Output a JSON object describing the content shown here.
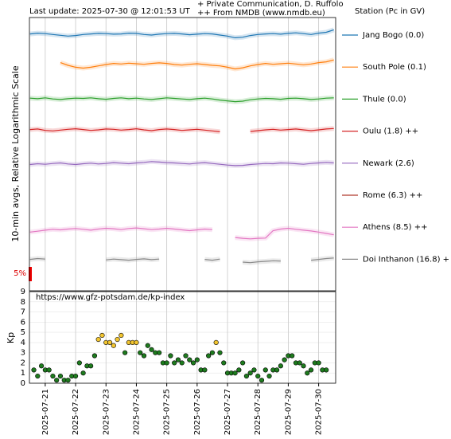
{
  "chart_data": [
    {
      "type": "line",
      "title": "Last update: 2025-07-30 @ 12:01:53 UT",
      "notes": [
        "+ Private Communication, D. Ruffolo",
        "++ From NMDB (www.nmdb.eu)"
      ],
      "legend_title": "Station (Pc in GV)",
      "y_label": "10-min avgs, Relative Logarithmic Scale",
      "scale_label": "5%",
      "xlim": [
        20.48,
        30.56
      ],
      "ylim": [
        0,
        100
      ],
      "xticks": [
        21,
        22,
        23,
        24,
        25,
        26,
        27,
        28,
        29,
        30
      ],
      "x": [
        20.5,
        20.75,
        21,
        21.25,
        21.5,
        21.75,
        22,
        22.25,
        22.5,
        22.75,
        23,
        23.25,
        23.5,
        23.75,
        24,
        24.25,
        24.5,
        24.75,
        25,
        25.25,
        25.5,
        25.75,
        26,
        26.25,
        26.5,
        26.75,
        27,
        27.25,
        27.5,
        27.75,
        28,
        28.25,
        28.5,
        28.75,
        29,
        29.25,
        29.5,
        29.75,
        30,
        30.25,
        30.5
      ],
      "series": [
        {
          "name": "Jang Bogo (0.0)",
          "color": "#1f77b4",
          "values": [
            94,
            94.3,
            94.1,
            93.8,
            93.5,
            93.2,
            93.4,
            93.8,
            94,
            94.2,
            94.1,
            93.9,
            94,
            94.3,
            94.2,
            93.8,
            93.6,
            93.9,
            94.1,
            94.2,
            94,
            93.7,
            93.9,
            94.1,
            94,
            93.6,
            93.2,
            92.6,
            92.8,
            93.4,
            93.8,
            94,
            94.1,
            93.9,
            94.2,
            94.4,
            94.1,
            93.8,
            94.3,
            94.6,
            95.5
          ]
        },
        {
          "name": "South Pole (0.1)",
          "color": "#ff7f0e",
          "values": [
            null,
            null,
            null,
            null,
            83.5,
            82.5,
            81.8,
            81.5,
            81.8,
            82.3,
            82.8,
            83.2,
            83,
            83.3,
            83.1,
            82.9,
            83.2,
            83.4,
            83.2,
            82.8,
            82.6,
            82.9,
            83.1,
            82.8,
            82.5,
            82.3,
            81.8,
            81.2,
            81.6,
            82.3,
            82.8,
            83.2,
            82.9,
            83.1,
            83.3,
            83,
            82.7,
            83,
            83.5,
            83.8,
            84.5
          ]
        },
        {
          "name": "Thule (0.0)",
          "color": "#2ca02c",
          "values": [
            70.5,
            70.3,
            70.6,
            70.2,
            70,
            70.3,
            70.5,
            70.4,
            70.6,
            70.3,
            70.1,
            70.4,
            70.6,
            70.3,
            70.5,
            70.2,
            70,
            70.3,
            70.6,
            70.4,
            70.2,
            70,
            70.3,
            70.5,
            70.2,
            69.8,
            69.5,
            69.2,
            69.4,
            69.9,
            70.2,
            70.4,
            70.3,
            70.1,
            70.4,
            70.5,
            70.3,
            70,
            70.2,
            70.5,
            70.6
          ]
        },
        {
          "name": "Oulu (1.8) ++",
          "color": "#d62728",
          "values": [
            59,
            59.2,
            58.7,
            58.5,
            58.8,
            59.1,
            59.3,
            59,
            58.7,
            58.9,
            59.2,
            59.1,
            58.8,
            59,
            59.3,
            58.9,
            58.6,
            59,
            59.2,
            59,
            58.7,
            58.9,
            59.1,
            58.8,
            58.5,
            58.2,
            null,
            null,
            null,
            58.3,
            58.6,
            58.9,
            59.1,
            58.8,
            59,
            59.2,
            58.9,
            58.6,
            58.9,
            59.2,
            59.4
          ]
        },
        {
          "name": "Newark (2.6)",
          "color": "#9467bd",
          "values": [
            46.2,
            46.5,
            46.3,
            46.6,
            46.8,
            46.4,
            46.2,
            46.5,
            46.7,
            46.4,
            46.6,
            46.9,
            46.7,
            46.5,
            46.8,
            47,
            47.3,
            47.1,
            46.9,
            46.8,
            46.6,
            46.4,
            46.7,
            46.9,
            46.6,
            46.3,
            46,
            45.8,
            45.9,
            46.2,
            46.4,
            46.6,
            46.5,
            46.8,
            46.7,
            46.5,
            46.3,
            46.6,
            46.8,
            47,
            46.8
          ]
        },
        {
          "name": "Rome (6.3) ++",
          "color": "#b03a2e",
          "values": [
            null,
            null,
            null,
            null,
            null,
            null,
            null,
            null,
            null,
            null,
            null,
            null,
            null,
            null,
            null,
            null,
            null,
            null,
            null,
            null,
            null,
            null,
            null,
            null,
            null,
            null,
            null,
            null,
            null,
            null,
            null,
            null,
            null,
            null,
            null,
            null,
            null,
            null,
            null,
            null,
            null
          ]
        },
        {
          "name": "Athens (8.5) ++",
          "color": "#e377c2",
          "values": [
            21.5,
            21.8,
            22.2,
            22.5,
            22.3,
            22.6,
            22.8,
            22.5,
            22.2,
            22.6,
            22.9,
            22.7,
            22.4,
            22.8,
            23,
            22.7,
            22.4,
            22.6,
            22.9,
            22.6,
            22.3,
            22,
            22.3,
            22.6,
            22.4,
            null,
            null,
            19.5,
            19.2,
            19,
            19.2,
            19.3,
            22,
            22.6,
            22.9,
            22.5,
            22.2,
            21.9,
            21.5,
            21,
            20.5
          ]
        },
        {
          "name": "Doi Inthanon (16.8) +",
          "color": "#8a8a8a",
          "values": [
            11.5,
            11.8,
            11.6,
            null,
            null,
            null,
            null,
            null,
            null,
            null,
            11.3,
            11.6,
            11.4,
            11.2,
            11.5,
            11.7,
            11.4,
            11.6,
            null,
            null,
            null,
            null,
            null,
            11.5,
            11.2,
            11.6,
            null,
            null,
            10.5,
            10.3,
            10.6,
            10.8,
            11,
            10.9,
            null,
            null,
            null,
            11.2,
            11.5,
            11.8,
            12
          ]
        }
      ]
    },
    {
      "type": "scatter",
      "annotation": "https://www.gfz-potsdam.de/kp-index",
      "y_label": "Kp",
      "xlim": [
        20.48,
        30.56
      ],
      "ylim": [
        0,
        9
      ],
      "yticks": [
        0,
        1,
        2,
        3,
        4,
        5,
        6,
        7,
        8,
        9
      ],
      "xticks": [
        {
          "value": 21,
          "label": "2025-07-21"
        },
        {
          "value": 22,
          "label": "2025-07-22"
        },
        {
          "value": 23,
          "label": "2025-07-23"
        },
        {
          "value": 24,
          "label": "2025-07-24"
        },
        {
          "value": 25,
          "label": "2025-07-25"
        },
        {
          "value": 26,
          "label": "2025-07-26"
        },
        {
          "value": 27,
          "label": "2025-07-27"
        },
        {
          "value": 28,
          "label": "2025-07-28"
        },
        {
          "value": 29,
          "label": "2025-07-29"
        },
        {
          "value": 30,
          "label": "2025-07-30"
        }
      ],
      "grid": true,
      "x": [
        20.625,
        20.75,
        20.875,
        21,
        21.125,
        21.25,
        21.375,
        21.5,
        21.625,
        21.75,
        21.875,
        22,
        22.125,
        22.25,
        22.375,
        22.5,
        22.625,
        22.75,
        22.875,
        23,
        23.125,
        23.25,
        23.375,
        23.5,
        23.625,
        23.75,
        23.875,
        24,
        24.125,
        24.25,
        24.375,
        24.5,
        24.625,
        24.75,
        24.875,
        25,
        25.125,
        25.25,
        25.375,
        25.5,
        25.625,
        25.75,
        25.875,
        26,
        26.125,
        26.25,
        26.375,
        26.5,
        26.625,
        26.75,
        26.875,
        27,
        27.125,
        27.25,
        27.375,
        27.5,
        27.625,
        27.75,
        27.875,
        28,
        28.125,
        28.25,
        28.375,
        28.5,
        28.625,
        28.75,
        28.875,
        29,
        29.125,
        29.25,
        29.375,
        29.5,
        29.625,
        29.75,
        29.875,
        30,
        30.125,
        30.25
      ],
      "values": [
        1.3,
        0.7,
        1.7,
        1.3,
        1.3,
        0.7,
        0.3,
        0.7,
        0.3,
        0.3,
        0.7,
        0.7,
        2,
        1,
        1.7,
        1.7,
        2.7,
        4.3,
        4.7,
        4,
        4,
        3.7,
        4.3,
        4.7,
        3,
        4,
        4,
        4,
        3,
        2.7,
        3.7,
        3.3,
        3,
        3,
        2,
        2,
        2.7,
        2,
        2.3,
        2,
        2.7,
        2.3,
        2,
        2.3,
        1.3,
        1.3,
        2.7,
        3,
        4,
        3,
        2,
        1,
        1,
        1,
        1.3,
        2,
        0.7,
        1,
        1.3,
        0.7,
        0.3,
        1.3,
        0.7,
        1.3,
        1.3,
        1.7,
        2.3,
        2.7,
        2.7,
        2,
        2,
        1.7,
        1,
        1.3,
        2,
        2,
        1.3,
        1.3
      ],
      "colors": [
        "#1e7b1e",
        "#1e7b1e",
        "#1e7b1e",
        "#1e7b1e",
        "#1e7b1e",
        "#1e7b1e",
        "#1e7b1e",
        "#1e7b1e",
        "#1e7b1e",
        "#1e7b1e",
        "#1e7b1e",
        "#1e7b1e",
        "#1e7b1e",
        "#1e7b1e",
        "#1e7b1e",
        "#1e7b1e",
        "#1e7b1e",
        "#f2c530",
        "#f2c530",
        "#f2c530",
        "#f2c530",
        "#f2c530",
        "#f2c530",
        "#f2c530",
        "#1e7b1e",
        "#f2c530",
        "#f2c530",
        "#f2c530",
        "#1e7b1e",
        "#1e7b1e",
        "#1e7b1e",
        "#1e7b1e",
        "#1e7b1e",
        "#1e7b1e",
        "#1e7b1e",
        "#1e7b1e",
        "#1e7b1e",
        "#1e7b1e",
        "#1e7b1e",
        "#1e7b1e",
        "#1e7b1e",
        "#1e7b1e",
        "#1e7b1e",
        "#1e7b1e",
        "#1e7b1e",
        "#1e7b1e",
        "#1e7b1e",
        "#1e7b1e",
        "#f2c530",
        "#1e7b1e",
        "#1e7b1e",
        "#1e7b1e",
        "#1e7b1e",
        "#1e7b1e",
        "#1e7b1e",
        "#1e7b1e",
        "#1e7b1e",
        "#1e7b1e",
        "#1e7b1e",
        "#1e7b1e",
        "#1e7b1e",
        "#1e7b1e",
        "#1e7b1e",
        "#1e7b1e",
        "#1e7b1e",
        "#1e7b1e",
        "#1e7b1e",
        "#1e7b1e",
        "#1e7b1e",
        "#1e7b1e",
        "#1e7b1e",
        "#1e7b1e",
        "#1e7b1e",
        "#1e7b1e",
        "#1e7b1e",
        "#1e7b1e",
        "#1e7b1e",
        "#1e7b1e"
      ]
    }
  ]
}
